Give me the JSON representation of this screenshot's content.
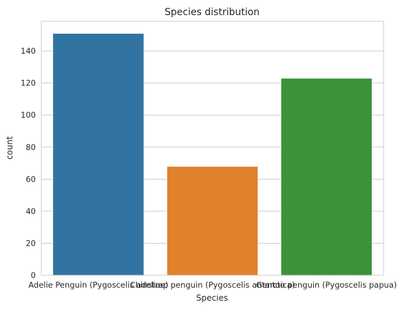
{
  "chart_data": {
    "type": "bar",
    "title": "Species distribution",
    "xlabel": "Species",
    "ylabel": "count",
    "categories": [
      "Adelie Penguin (Pygoscelis adeliae)",
      "Chinstrap penguin (Pygoscelis antarctica)",
      "Gentoo penguin (Pygoscelis papua)"
    ],
    "values": [
      151,
      68,
      123
    ],
    "colors": [
      "#3274a1",
      "#e1812c",
      "#3a923a"
    ],
    "ylim": [
      0,
      158.5
    ],
    "yticks": [
      0,
      20,
      40,
      60,
      80,
      100,
      120,
      140
    ],
    "grid": true,
    "grid_axis": "y",
    "style": "whitegrid"
  }
}
